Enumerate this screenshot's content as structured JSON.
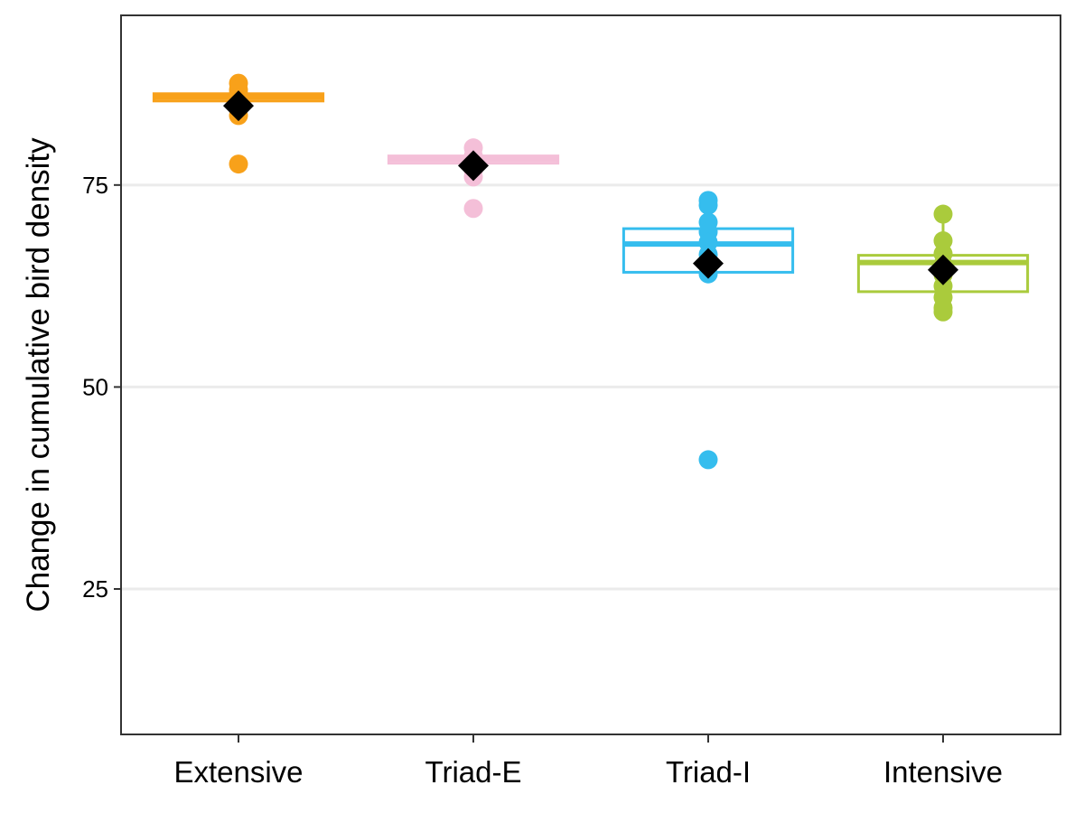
{
  "chart_data": {
    "type": "box",
    "title": "",
    "xlabel": "",
    "ylabel": "Change in cumulative bird density",
    "categories": [
      "Extensive",
      "Triad-E",
      "Triad-I",
      "Intensive"
    ],
    "ylim": [
      7,
      96
    ],
    "yticks": [
      25,
      50,
      75
    ],
    "grid": "horizontal major",
    "legend": "none",
    "mean_marker": "black diamond",
    "series": [
      {
        "category": "Extensive",
        "color": "#F8A11A",
        "q1": 85.4,
        "median": 85.9,
        "q3": 86.3,
        "whisker_low": 85.4,
        "whisker_high": 86.3,
        "mean": 84.8,
        "points": [
          87.6,
          86.8,
          86.3,
          85.9,
          85.4,
          84.6,
          83.6,
          77.6
        ]
      },
      {
        "category": "Triad-E",
        "color": "#F4BFD8",
        "q1": 77.7,
        "median": 78.2,
        "q3": 78.6,
        "whisker_low": 77.7,
        "whisker_high": 78.6,
        "mean": 77.4,
        "points": [
          79.6,
          78.6,
          78.1,
          77.7,
          76.8,
          76.0,
          72.1
        ]
      },
      {
        "category": "Triad-I",
        "color": "#35BDEE",
        "q1": 64.2,
        "median": 67.7,
        "q3": 69.6,
        "whisker_low": 64.2,
        "whisker_high": 73.1,
        "mean": 65.3,
        "points": [
          73.1,
          72.5,
          70.4,
          69.2,
          67.9,
          66.4,
          65.1,
          64.0,
          41.0
        ]
      },
      {
        "category": "Intensive",
        "color": "#AACB3C",
        "q1": 61.8,
        "median": 65.4,
        "q3": 66.3,
        "whisker_low": 59.3,
        "whisker_high": 71.4,
        "mean": 64.5,
        "points": [
          71.4,
          68.1,
          66.5,
          65.2,
          63.9,
          62.5,
          61.1,
          59.8,
          59.3
        ]
      }
    ]
  }
}
